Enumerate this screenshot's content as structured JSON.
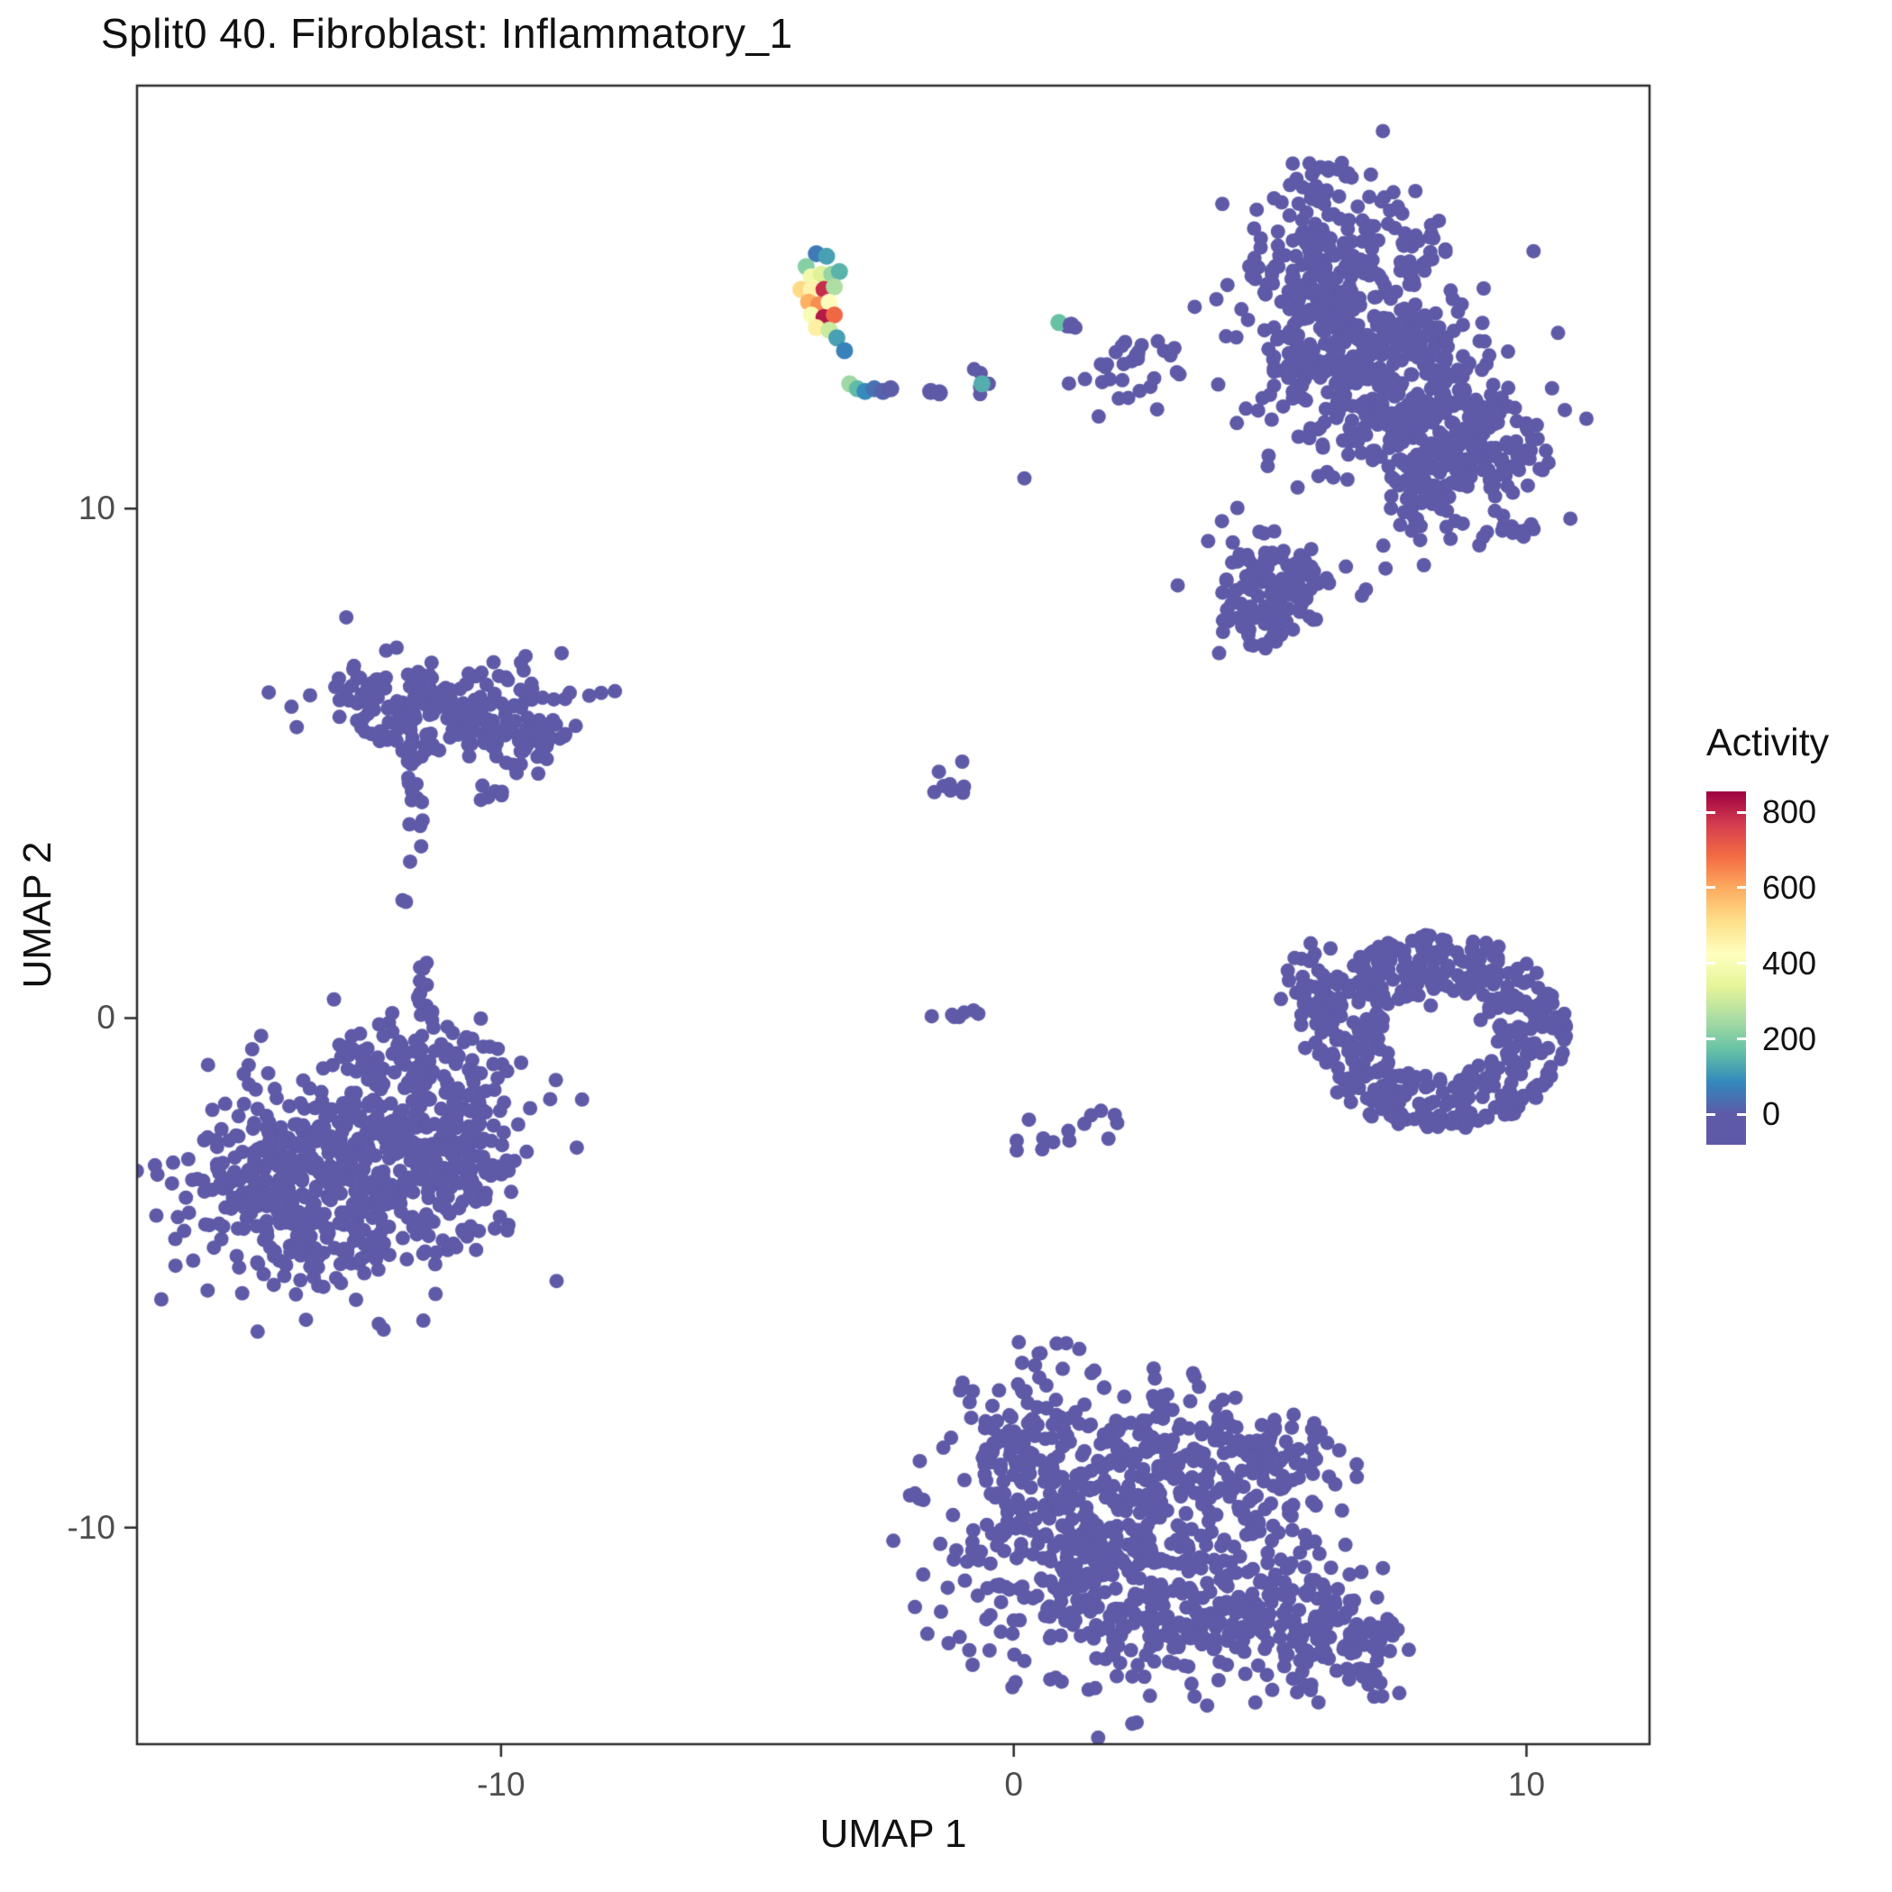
{
  "chart_data": {
    "type": "scatter",
    "title": "Split0 40. Fibroblast: Inflammatory_1",
    "xlabel": "UMAP 1",
    "ylabel": "UMAP 2",
    "grid": false,
    "background_color": "#FFFFFF",
    "panel_border_color": "#2B2B2B",
    "tick_label_color": "#4D4D4D",
    "x_domain": [
      -17.1,
      12.4
    ],
    "y_domain": [
      -14.25,
      18.3
    ],
    "x_ticks": [
      {
        "value": -10,
        "label": "-10"
      },
      {
        "value": 0,
        "label": "0"
      },
      {
        "value": 10,
        "label": "10"
      }
    ],
    "y_ticks": [
      {
        "value": 10,
        "label": "10"
      },
      {
        "value": 0,
        "label": "0"
      },
      {
        "value": -10,
        "label": "-10"
      }
    ],
    "legend": {
      "title": "Activity",
      "domain": {
        "min": -80,
        "max": 855
      },
      "ticks": [
        {
          "value": 800,
          "label": "800"
        },
        {
          "value": 600,
          "label": "600"
        },
        {
          "value": 400,
          "label": "400"
        },
        {
          "value": 200,
          "label": "200"
        },
        {
          "value": 0,
          "label": "0"
        }
      ]
    },
    "colormap": [
      {
        "value": 0,
        "color": "#5E5AA7"
      },
      {
        "value": 85,
        "color": "#3288BD"
      },
      {
        "value": 170,
        "color": "#66C2A5"
      },
      {
        "value": 255,
        "color": "#ABDDA4"
      },
      {
        "value": 340,
        "color": "#E6F598"
      },
      {
        "value": 425,
        "color": "#FFFFBF"
      },
      {
        "value": 510,
        "color": "#FEE08B"
      },
      {
        "value": 595,
        "color": "#FDAE61"
      },
      {
        "value": 680,
        "color": "#F46D43"
      },
      {
        "value": 765,
        "color": "#D53E4F"
      },
      {
        "value": 855,
        "color": "#9E0142"
      }
    ],
    "base_point_color": "#5E5AA7",
    "clusters": [
      {
        "name": "top-right-main-upper",
        "n": 320,
        "cx": 6.3,
        "cy": 14.3,
        "sx": 1.0,
        "sy": 1.1
      },
      {
        "name": "top-right-main-mid",
        "n": 280,
        "cx": 7.4,
        "cy": 12.4,
        "sx": 1.2,
        "sy": 1.0
      },
      {
        "name": "top-right-main-lowerright",
        "n": 130,
        "cx": 8.5,
        "cy": 11.1,
        "sx": 0.8,
        "sy": 0.7
      },
      {
        "name": "top-right-tip",
        "n": 25,
        "cx": 6.0,
        "cy": 16.3,
        "sx": 0.4,
        "sy": 0.4
      },
      {
        "name": "top-right-lower-lobe-a",
        "n": 70,
        "cx": 4.9,
        "cy": 8.6,
        "sx": 0.55,
        "sy": 0.55
      },
      {
        "name": "top-right-lower-lobe-b",
        "n": 60,
        "cx": 5.3,
        "cy": 8.3,
        "sx": 0.6,
        "sy": 0.5
      },
      {
        "name": "top-right-lower-ext",
        "n": 30,
        "cx": 7.9,
        "cy": 9.8,
        "sx": 0.7,
        "sy": 0.5
      },
      {
        "name": "top-right-strand",
        "n": 14,
        "cx": 9.8,
        "cy": 9.55,
        "sx": 0.35,
        "sy": 0.12
      },
      {
        "name": "top-right-east-a",
        "n": 20,
        "cx": 9.1,
        "cy": 11.6,
        "sx": 0.4,
        "sy": 0.5
      },
      {
        "name": "top-right-east-b",
        "n": 18,
        "cx": 10.0,
        "cy": 11.4,
        "sx": 0.45,
        "sy": 0.4
      },
      {
        "name": "mid-top-group-a",
        "n": 10,
        "cx": 3.1,
        "cy": 12.8,
        "sx": 0.3,
        "sy": 0.25
      },
      {
        "name": "mid-top-group-b",
        "n": 16,
        "cx": 1.8,
        "cy": 12.5,
        "sx": 0.4,
        "sy": 0.35
      },
      {
        "name": "mid-top-group-c",
        "n": 6,
        "cx": 2.5,
        "cy": 13.2,
        "sx": 0.2,
        "sy": 0.15
      },
      {
        "name": "mid-top-pair",
        "n": 2,
        "cx": 1.15,
        "cy": 13.6,
        "sx": 0.1,
        "sy": 0.1
      },
      {
        "name": "mid-single",
        "n": 1,
        "cx": 0.2,
        "cy": 10.6,
        "sx": 0.01,
        "sy": 0.01
      },
      {
        "name": "mid-small-left",
        "n": 5,
        "cx": -0.65,
        "cy": 12.4,
        "sx": 0.15,
        "sy": 0.12
      },
      {
        "name": "left-top-main",
        "n": 200,
        "cx": -11.2,
        "cy": 6.1,
        "sx": 1.25,
        "sy": 0.45
      },
      {
        "name": "left-top-east",
        "n": 45,
        "cx": -9.6,
        "cy": 5.5,
        "sx": 0.5,
        "sy": 0.35
      },
      {
        "name": "left-top-under",
        "n": 12,
        "cx": -11.6,
        "cy": 5.2,
        "sx": 0.2,
        "sy": 0.3
      },
      {
        "name": "left-trail",
        "n": 12,
        "cx": -11.7,
        "cy": 3.8,
        "sx": 0.12,
        "sy": 0.7
      },
      {
        "name": "left-pair",
        "n": 6,
        "cx": -10.3,
        "cy": 4.45,
        "sx": 0.25,
        "sy": 0.15
      },
      {
        "name": "left-lone",
        "n": 2,
        "cx": -11.9,
        "cy": 2.2,
        "sx": 0.08,
        "sy": 0.1
      },
      {
        "name": "left-neck",
        "n": 10,
        "cx": -11.45,
        "cy": 0.45,
        "sx": 0.15,
        "sy": 0.55
      },
      {
        "name": "left-bottom-main",
        "n": 500,
        "cx": -13.5,
        "cy": -3.3,
        "sx": 1.45,
        "sy": 1.05
      },
      {
        "name": "left-bottom-ne",
        "n": 150,
        "cx": -11.3,
        "cy": -1.6,
        "sx": 0.85,
        "sy": 0.75
      },
      {
        "name": "left-bottom-e",
        "n": 90,
        "cx": -10.8,
        "cy": -3.1,
        "sx": 0.6,
        "sy": 0.6
      },
      {
        "name": "left-bottom-n",
        "n": 40,
        "cx": -12.4,
        "cy": -0.7,
        "sx": 0.6,
        "sy": 0.4
      },
      {
        "name": "center-small",
        "n": 9,
        "cx": -1.3,
        "cy": 4.5,
        "sx": 0.18,
        "sy": 0.22
      },
      {
        "name": "center-row",
        "n": 7,
        "cx": -1.1,
        "cy": 0.05,
        "sx": 0.32,
        "sy": 0.08
      },
      {
        "name": "center-arc",
        "n": 11,
        "cx": 0.9,
        "cy": -2.35,
        "sx": 0.55,
        "sy": 0.25
      },
      {
        "name": "center-arc-tip",
        "n": 3,
        "cx": 2.0,
        "cy": -1.85,
        "sx": 0.1,
        "sy": 0.1
      },
      {
        "name": "right-ring",
        "type": "ring",
        "n": 430,
        "cx": 8.3,
        "cy": -0.3,
        "rIn": 1.1,
        "rOut": 2.5,
        "aspect": 0.78
      },
      {
        "name": "right-ring-inner",
        "n": 12,
        "cx": 7.8,
        "cy": 0.3,
        "sx": 0.6,
        "sy": 0.4
      },
      {
        "name": "right-ring-west",
        "n": 40,
        "cx": 5.9,
        "cy": 0.6,
        "sx": 0.4,
        "sy": 0.5
      },
      {
        "name": "bottom-lobe-nw",
        "n": 130,
        "cx": 0.3,
        "cy": -8.6,
        "sx": 0.85,
        "sy": 0.8
      },
      {
        "name": "bottom-lobe-n",
        "n": 140,
        "cx": 2.6,
        "cy": -8.4,
        "sx": 0.9,
        "sy": 0.75
      },
      {
        "name": "bottom-lobe-ne",
        "n": 110,
        "cx": 4.9,
        "cy": -8.9,
        "sx": 0.75,
        "sy": 0.65
      },
      {
        "name": "bottom-lobe-sw",
        "n": 230,
        "cx": 1.2,
        "cy": -11.0,
        "sx": 1.15,
        "sy": 0.95
      },
      {
        "name": "bottom-lobe-se",
        "n": 230,
        "cx": 4.1,
        "cy": -11.6,
        "sx": 1.25,
        "sy": 0.85
      },
      {
        "name": "bottom-lobe-far-se",
        "n": 90,
        "cx": 6.3,
        "cy": -12.3,
        "sx": 0.65,
        "sy": 0.55
      },
      {
        "name": "bottom-bridge",
        "n": 110,
        "cx": 2.3,
        "cy": -10.0,
        "sx": 1.4,
        "sy": 0.6
      },
      {
        "name": "bottom-west-pair",
        "n": 4,
        "cx": -1.9,
        "cy": -9.3,
        "sx": 0.12,
        "sy": 0.12
      },
      {
        "name": "bottom-top-pair-a",
        "n": 4,
        "cx": 0.35,
        "cy": -6.6,
        "sx": 0.18,
        "sy": 0.1
      },
      {
        "name": "bottom-top-pair-b",
        "n": 3,
        "cx": 1.05,
        "cy": -6.4,
        "sx": 0.12,
        "sy": 0.08
      },
      {
        "name": "bottom-lone",
        "n": 2,
        "cx": 0.15,
        "cy": -7.4,
        "sx": 0.08,
        "sy": 0.08
      }
    ],
    "highlight_points": [
      {
        "x": -3.85,
        "y": 15.0,
        "v": 60
      },
      {
        "x": -3.65,
        "y": 14.95,
        "v": 120
      },
      {
        "x": -4.05,
        "y": 14.75,
        "v": 210
      },
      {
        "x": -3.95,
        "y": 14.55,
        "v": 380
      },
      {
        "x": -3.75,
        "y": 14.6,
        "v": 330
      },
      {
        "x": -3.55,
        "y": 14.6,
        "v": 230
      },
      {
        "x": -3.4,
        "y": 14.65,
        "v": 150
      },
      {
        "x": -4.15,
        "y": 14.3,
        "v": 520
      },
      {
        "x": -3.95,
        "y": 14.3,
        "v": 460
      },
      {
        "x": -3.7,
        "y": 14.3,
        "v": 790
      },
      {
        "x": -3.5,
        "y": 14.35,
        "v": 260
      },
      {
        "x": -4.0,
        "y": 14.05,
        "v": 590
      },
      {
        "x": -3.8,
        "y": 14.0,
        "v": 640
      },
      {
        "x": -3.6,
        "y": 14.05,
        "v": 430
      },
      {
        "x": -3.95,
        "y": 13.8,
        "v": 400
      },
      {
        "x": -3.7,
        "y": 13.75,
        "v": 820
      },
      {
        "x": -3.5,
        "y": 13.8,
        "v": 690
      },
      {
        "x": -3.85,
        "y": 13.55,
        "v": 470
      },
      {
        "x": -3.6,
        "y": 13.5,
        "v": 300
      },
      {
        "x": -3.45,
        "y": 13.35,
        "v": 120
      },
      {
        "x": -3.3,
        "y": 13.1,
        "v": 70
      },
      {
        "x": -3.2,
        "y": 12.45,
        "v": 240
      },
      {
        "x": -3.05,
        "y": 12.35,
        "v": 160
      },
      {
        "x": -2.9,
        "y": 12.3,
        "v": 90
      },
      {
        "x": -2.72,
        "y": 12.35,
        "v": 40
      },
      {
        "x": -2.55,
        "y": 12.3,
        "v": 15
      },
      {
        "x": -2.4,
        "y": 12.35,
        "v": 5
      },
      {
        "x": -1.62,
        "y": 12.3,
        "v": 0
      },
      {
        "x": -1.45,
        "y": 12.27,
        "v": 0
      },
      {
        "x": -0.62,
        "y": 12.45,
        "v": 140
      },
      {
        "x": 0.88,
        "y": 13.65,
        "v": 170
      },
      {
        "x": 1.12,
        "y": 13.6,
        "v": 0
      }
    ]
  }
}
